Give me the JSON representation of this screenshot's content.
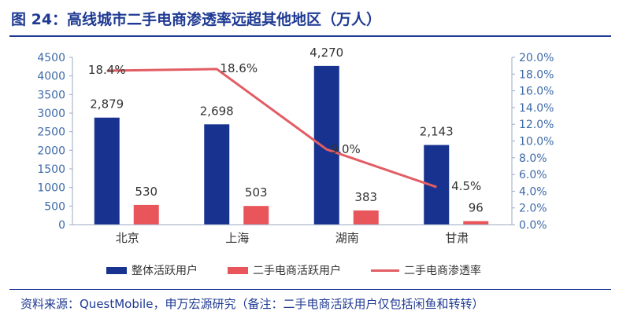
{
  "header": {
    "title": "图 24：高线城市二手电商渗透率远超其他地区（万人）"
  },
  "source": "资料来源：QuestMobile，申万宏源研究（备注：二手电商活跃用户仅包括闲鱼和转转）",
  "colors": {
    "title": "#1f3a93",
    "overall": "#17338f",
    "secondhand": "#e8555a",
    "rate": "#e25d64",
    "axis_text": "#3d6aa8"
  },
  "chart_data": {
    "type": "bar",
    "categories": [
      "北京",
      "上海",
      "湖南",
      "甘肃"
    ],
    "series": [
      {
        "name": "整体活跃用户",
        "kind": "bar",
        "axis": "left",
        "values": [
          2879,
          2698,
          4270,
          2143
        ],
        "labels": [
          "2,879",
          "2,698",
          "4,270",
          "2,143"
        ]
      },
      {
        "name": "二手电商活跃用户",
        "kind": "bar",
        "axis": "left",
        "values": [
          530,
          503,
          383,
          96
        ],
        "labels": [
          "530",
          "503",
          "383",
          "96"
        ]
      },
      {
        "name": "二手电商渗透率",
        "kind": "line",
        "axis": "right",
        "values": [
          18.4,
          18.6,
          9.0,
          4.5
        ],
        "labels": [
          "18.4%",
          "18.6%",
          "9.0%",
          "4.5%"
        ]
      }
    ],
    "ylim": [
      0,
      4500
    ],
    "yticks": [
      "0",
      "500",
      "1000",
      "1500",
      "2000",
      "2500",
      "3000",
      "3500",
      "4000",
      "4500"
    ],
    "y2lim": [
      0,
      20
    ],
    "y2ticks": [
      "0.0%",
      "2.0%",
      "4.0%",
      "6.0%",
      "8.0%",
      "10.0%",
      "12.0%",
      "14.0%",
      "16.0%",
      "18.0%",
      "20.0%"
    ],
    "grid": false,
    "legend": "bottom"
  }
}
